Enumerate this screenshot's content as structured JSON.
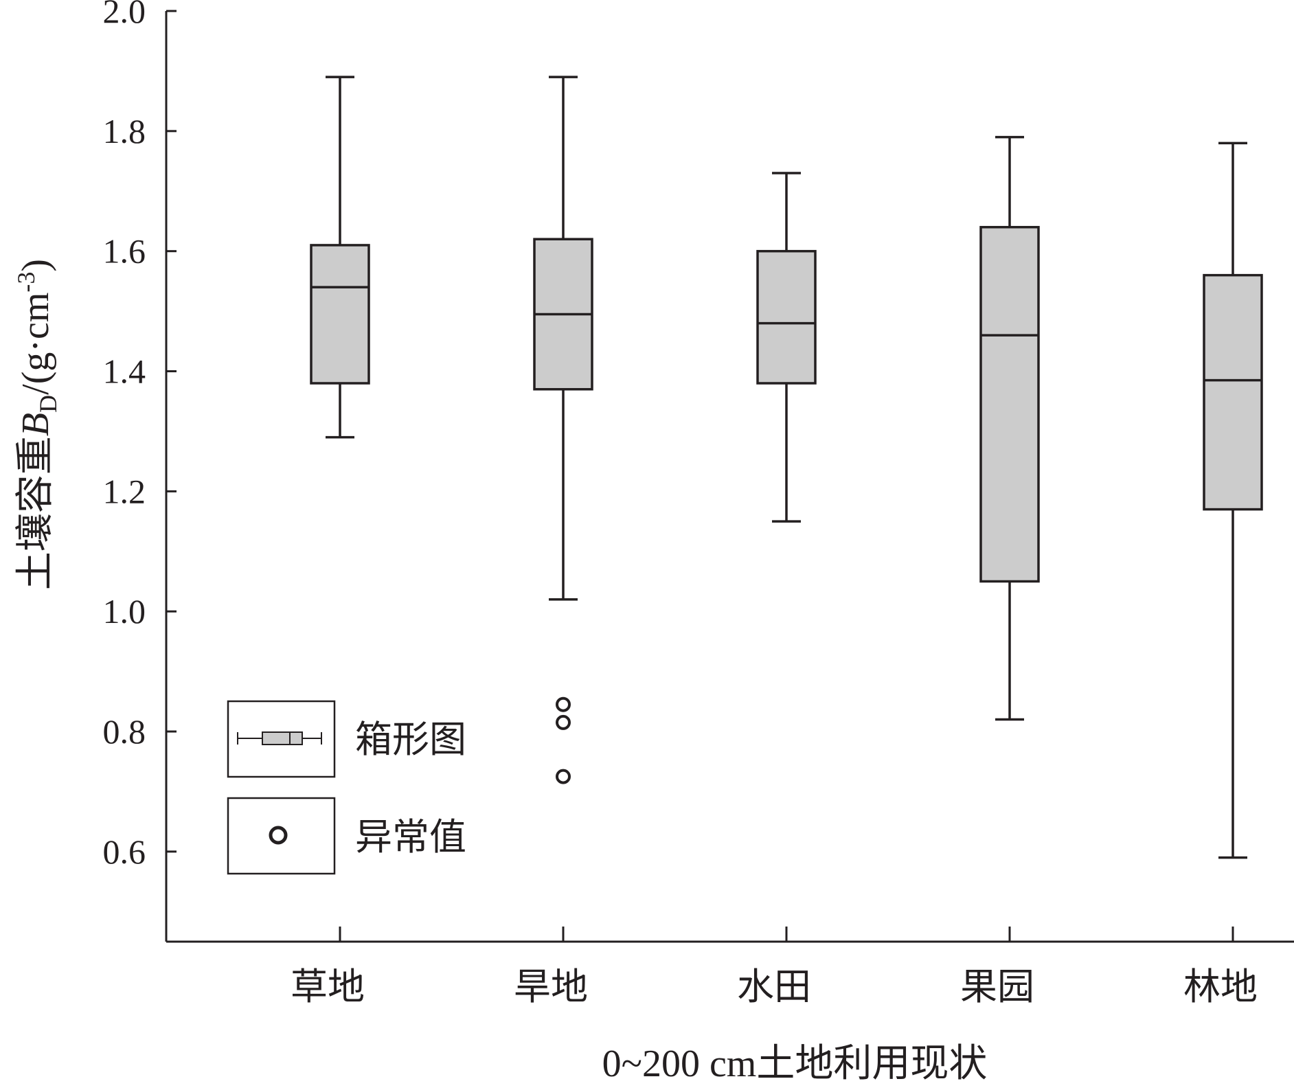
{
  "chart_data": {
    "type": "box",
    "xlabel": "0~200 cm土地利用现状",
    "ylabel": {
      "main": "土壤容重",
      "var": "B",
      "sub": "D",
      "unit": "/(g·cm",
      "sup": "-3",
      "close": ")"
    },
    "ylim": [
      0.45,
      2.0
    ],
    "yticks": [
      "0.6",
      "0.8",
      "1.0",
      "1.2",
      "1.4",
      "1.6",
      "1.8",
      "2.0"
    ],
    "grid": false,
    "legend_position": "bottom-left",
    "colors": {
      "box_fill": "#cccccc",
      "stroke": "#231f20"
    },
    "categories": [
      "草地",
      "旱地",
      "水田",
      "果园",
      "林地"
    ],
    "boxes": [
      {
        "category": "草地",
        "min": 1.29,
        "q1": 1.38,
        "median": 1.54,
        "q3": 1.61,
        "max": 1.89,
        "outliers": []
      },
      {
        "category": "旱地",
        "min": 1.02,
        "q1": 1.37,
        "median": 1.495,
        "q3": 1.62,
        "max": 1.89,
        "outliers": [
          0.845,
          0.815,
          0.725
        ]
      },
      {
        "category": "水田",
        "min": 1.15,
        "q1": 1.38,
        "median": 1.48,
        "q3": 1.6,
        "max": 1.73,
        "outliers": []
      },
      {
        "category": "果园",
        "min": 0.82,
        "q1": 1.05,
        "median": 1.46,
        "q3": 1.64,
        "max": 1.79,
        "outliers": []
      },
      {
        "category": "林地",
        "min": 0.59,
        "q1": 1.17,
        "median": 1.385,
        "q3": 1.56,
        "max": 1.78,
        "outliers": []
      }
    ],
    "legend": [
      {
        "symbol": "box",
        "label": "箱形图"
      },
      {
        "symbol": "outlier",
        "label": "异常值"
      }
    ]
  }
}
